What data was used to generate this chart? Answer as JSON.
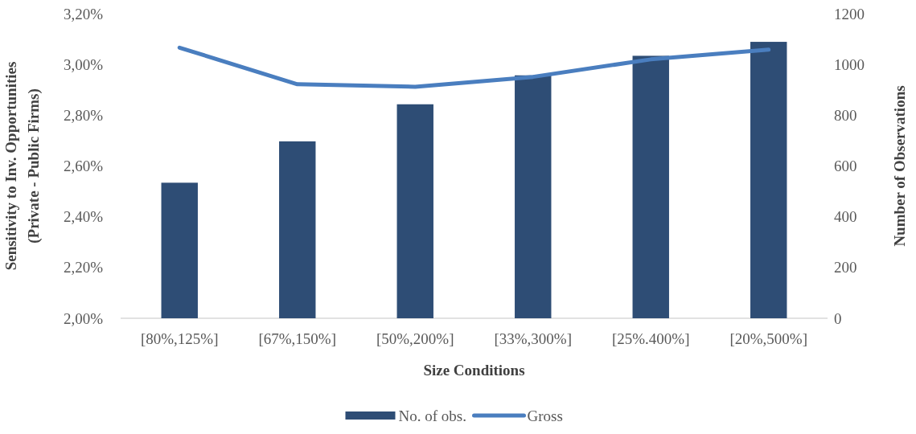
{
  "chart_data": {
    "type": "bar",
    "xlabel": "Size Conditions",
    "ylabel": "Sensitivity to Inv. Opportunities (Private - Public Firms)",
    "y2label": "Number of Observations",
    "categories": [
      "[80%,125%]",
      "[67%,150%]",
      "[50%,200%]",
      "[33%,300%]",
      "[25%.400%]",
      "[20%,500%]"
    ],
    "series": [
      {
        "name": "No. of obs.",
        "axis": "y2",
        "color": "#2e4d75",
        "values": [
          534,
          697,
          843,
          957,
          1034,
          1089
        ]
      },
      {
        "name": "Gross",
        "type": "line",
        "color": "#4a7ebf",
        "values": [
          3.066,
          2.922,
          2.912,
          2.951,
          3.02,
          3.058
        ]
      }
    ],
    "ylim": [
      2.0,
      3.2
    ],
    "yticks": [
      {
        "value": 2.0,
        "label": "2,00%"
      },
      {
        "value": 2.2,
        "label": "2,20%"
      },
      {
        "value": 2.4,
        "label": "2,40%"
      },
      {
        "value": 2.6,
        "label": "2,60%"
      },
      {
        "value": 2.8,
        "label": "2,80%"
      },
      {
        "value": 3.0,
        "label": "3,00%"
      },
      {
        "value": 3.2,
        "label": "3,20%"
      }
    ],
    "y2lim": [
      0,
      1200
    ],
    "y2ticks": [
      0,
      200,
      400,
      600,
      800,
      1000,
      1200
    ],
    "legend": "bottom",
    "grid": false,
    "marker": "none",
    "line_style": "solid"
  }
}
